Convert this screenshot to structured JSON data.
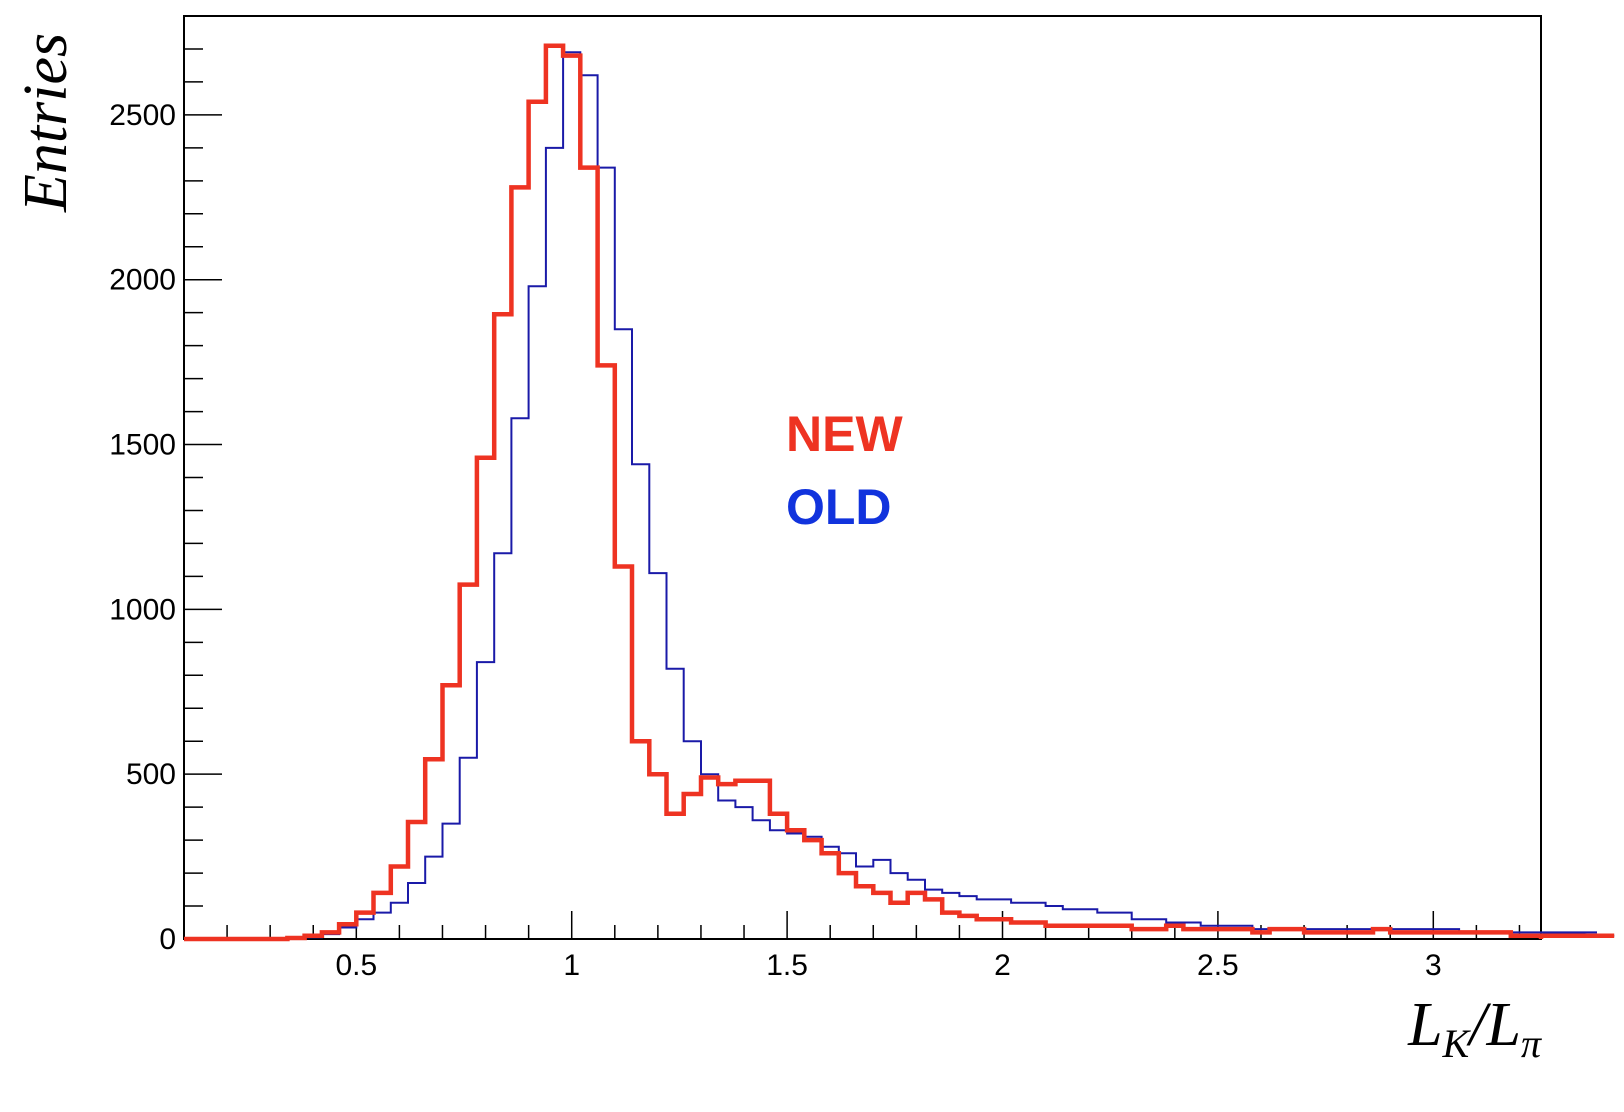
{
  "chart_data": {
    "type": "histogram",
    "xlabel": {
      "main": "L",
      "sub1": "K",
      "slash": "/",
      "main2": "L",
      "sub2": "π"
    },
    "ylabel": "Entries",
    "xlim": [
      0.1,
      3.25
    ],
    "ylim": [
      0,
      2800
    ],
    "bin_width": 0.04,
    "bin_start": 0.1,
    "x_ticks": [
      0.5,
      1,
      1.5,
      2,
      2.5,
      3
    ],
    "x_tick_labels": [
      "0.5",
      "1",
      "1.5",
      "2",
      "2.5",
      "3"
    ],
    "y_ticks": [
      0,
      500,
      1000,
      1500,
      2000,
      2500
    ],
    "y_tick_labels": [
      "0",
      "500",
      "1000",
      "1500",
      "2000",
      "2500"
    ],
    "grid": false,
    "legend_position": "center",
    "series": [
      {
        "name": "NEW",
        "color": "#ee3322",
        "line_width": "thick",
        "values": [
          0,
          0,
          0,
          0,
          0,
          0,
          3,
          10,
          20,
          45,
          80,
          140,
          220,
          355,
          545,
          770,
          1075,
          1460,
          1895,
          2280,
          2540,
          2710,
          2680,
          2340,
          1740,
          1130,
          600,
          500,
          380,
          440,
          490,
          470,
          480,
          480,
          380,
          330,
          300,
          260,
          200,
          160,
          140,
          110,
          140,
          120,
          80,
          70,
          60,
          60,
          50,
          50,
          40,
          40,
          40,
          40,
          40,
          30,
          30,
          40,
          30,
          30,
          30,
          30,
          20,
          30,
          30,
          20,
          20,
          20,
          20,
          30,
          20,
          20,
          20,
          20,
          20,
          20,
          20,
          10,
          10,
          10,
          10,
          10,
          10,
          10
        ]
      },
      {
        "name": "OLD",
        "color": "#1a1aa8",
        "line_width": "thin",
        "values": [
          0,
          0,
          0,
          0,
          0,
          0,
          0,
          5,
          15,
          35,
          60,
          80,
          110,
          170,
          250,
          350,
          550,
          840,
          1170,
          1580,
          1980,
          2400,
          2690,
          2620,
          2340,
          1850,
          1440,
          1110,
          820,
          600,
          500,
          420,
          400,
          360,
          330,
          320,
          310,
          280,
          260,
          220,
          240,
          200,
          180,
          150,
          140,
          130,
          120,
          120,
          110,
          110,
          100,
          90,
          90,
          80,
          80,
          60,
          60,
          50,
          50,
          40,
          40,
          40,
          30,
          30,
          30,
          30,
          30,
          30,
          30,
          30,
          30,
          30,
          30,
          30,
          20,
          20,
          20,
          20,
          20,
          20,
          20,
          20,
          20,
          10
        ]
      }
    ]
  }
}
